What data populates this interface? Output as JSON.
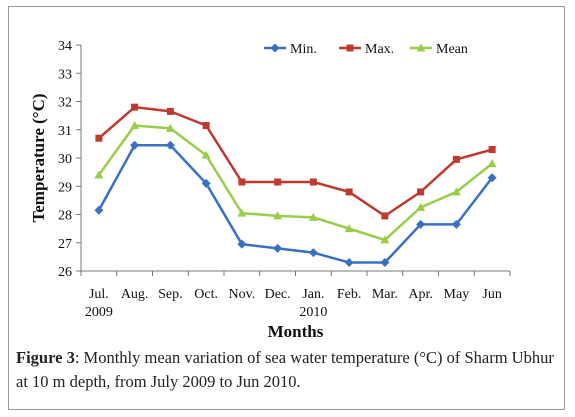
{
  "chart_data": {
    "type": "line",
    "categories": [
      "Jul.",
      "Aug.",
      "Sep.",
      "Oct.",
      "Nov.",
      "Dec.",
      "Jan.",
      "Feb.",
      "Mar.",
      "Apr.",
      "May",
      "Jun"
    ],
    "year_labels": [
      {
        "category_index": 0,
        "text": "2009"
      },
      {
        "category_index": 6,
        "text": "2010"
      }
    ],
    "xlabel": "Months",
    "ylabel": "Temperature (°C)",
    "ylim": [
      26,
      34
    ],
    "yticks": [
      26,
      27,
      28,
      29,
      30,
      31,
      32,
      33,
      34
    ],
    "grid": false,
    "legend_position": "top-right",
    "series": [
      {
        "name": "Min.",
        "color": "#3a6fc4",
        "marker": "diamond",
        "values": [
          28.15,
          30.45,
          30.45,
          29.1,
          26.95,
          26.8,
          26.65,
          26.3,
          26.3,
          27.65,
          27.65,
          29.3
        ]
      },
      {
        "name": "Max.",
        "color": "#c0392f",
        "marker": "square",
        "values": [
          30.7,
          31.8,
          31.65,
          31.15,
          29.15,
          29.15,
          29.15,
          28.8,
          27.95,
          28.8,
          29.95,
          30.3
        ]
      },
      {
        "name": "Mean",
        "color": "#9acd4a",
        "marker": "triangle",
        "values": [
          29.4,
          31.15,
          31.05,
          30.1,
          28.05,
          27.95,
          27.9,
          27.5,
          27.1,
          28.25,
          28.8,
          29.8
        ]
      }
    ]
  },
  "caption": {
    "label": "Figure 3",
    "text": ": Monthly mean variation of sea water temperature (°C) of Sharm Ubhur at 10 m depth, from July 2009 to Jun 2010."
  }
}
